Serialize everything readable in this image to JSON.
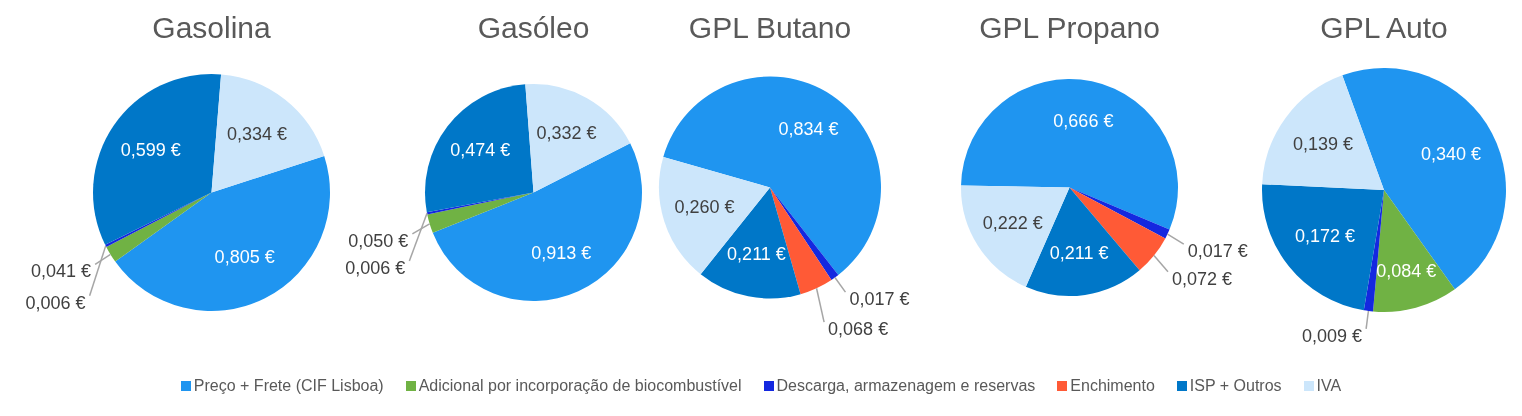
{
  "chart_data": [
    {
      "type": "pie",
      "title": "Gasolina",
      "legend": "bottom",
      "categories": [
        "Preço + Frete (CIF Lisboa)",
        "Adicional por incorporação de biocombustível",
        "Descarga, armazenagem e reservas",
        "Enchimento",
        "ISP + Outros",
        "IVA"
      ],
      "colors": [
        "#1f95f0",
        "#70b244",
        "#1428e0",
        "#ff5a36",
        "#0077c8",
        "#cce6fb"
      ],
      "values": [
        0.805,
        0.041,
        0.006,
        null,
        0.599,
        0.334
      ],
      "value_labels": [
        "0,805 €",
        "0,041 €",
        "0,006 €",
        null,
        "0,599 €",
        "0,334 €"
      ]
    },
    {
      "type": "pie",
      "title": "Gasóleo",
      "categories": [
        null,
        null,
        null,
        null,
        null,
        null
      ],
      "colors": [
        "#1f95f0",
        "#70b244",
        "#1428e0",
        "#ff5a36",
        "#0077c8",
        "#cce6fb"
      ],
      "values": [
        0.913,
        0.05,
        0.006,
        null,
        0.474,
        0.332
      ],
      "value_labels": [
        "0,913 €",
        "0,050 €",
        "0,006 €",
        null,
        "0,474 €",
        "0,332 €"
      ]
    },
    {
      "type": "pie",
      "title": "GPL Butano",
      "categories": [
        null,
        null,
        null,
        null,
        null,
        null
      ],
      "colors": [
        "#1f95f0",
        "#70b244",
        "#1428e0",
        "#ff5a36",
        "#0077c8",
        "#cce6fb"
      ],
      "values": [
        0.834,
        null,
        0.017,
        0.068,
        0.211,
        0.26
      ],
      "value_labels": [
        "0,834 €",
        null,
        "0,017 €",
        "0,068 €",
        "0,211 €",
        "0,260 €"
      ]
    },
    {
      "type": "pie",
      "title": "GPL Propano",
      "categories": [
        null,
        null,
        null,
        null,
        null,
        null
      ],
      "colors": [
        "#1f95f0",
        "#70b244",
        "#1428e0",
        "#ff5a36",
        "#0077c8",
        "#cce6fb"
      ],
      "values": [
        0.666,
        null,
        0.017,
        0.072,
        0.211,
        0.222
      ],
      "value_labels": [
        "0,666 €",
        null,
        "0,017 €",
        "0,072 €",
        "0,211 €",
        "0,222 €"
      ]
    },
    {
      "type": "pie",
      "title": "GPL Auto",
      "categories": [
        null,
        null,
        null,
        null,
        null,
        null
      ],
      "colors": [
        "#1f95f0",
        "#70b244",
        "#1428e0",
        "#ff5a36",
        "#0077c8",
        "#cce6fb"
      ],
      "values": [
        0.34,
        0.084,
        0.009,
        null,
        0.172,
        0.139
      ],
      "value_labels": [
        "0,340 €",
        "0,084 €",
        "0,009 €",
        null,
        "0,172 €",
        "0,139 €"
      ]
    }
  ]
}
